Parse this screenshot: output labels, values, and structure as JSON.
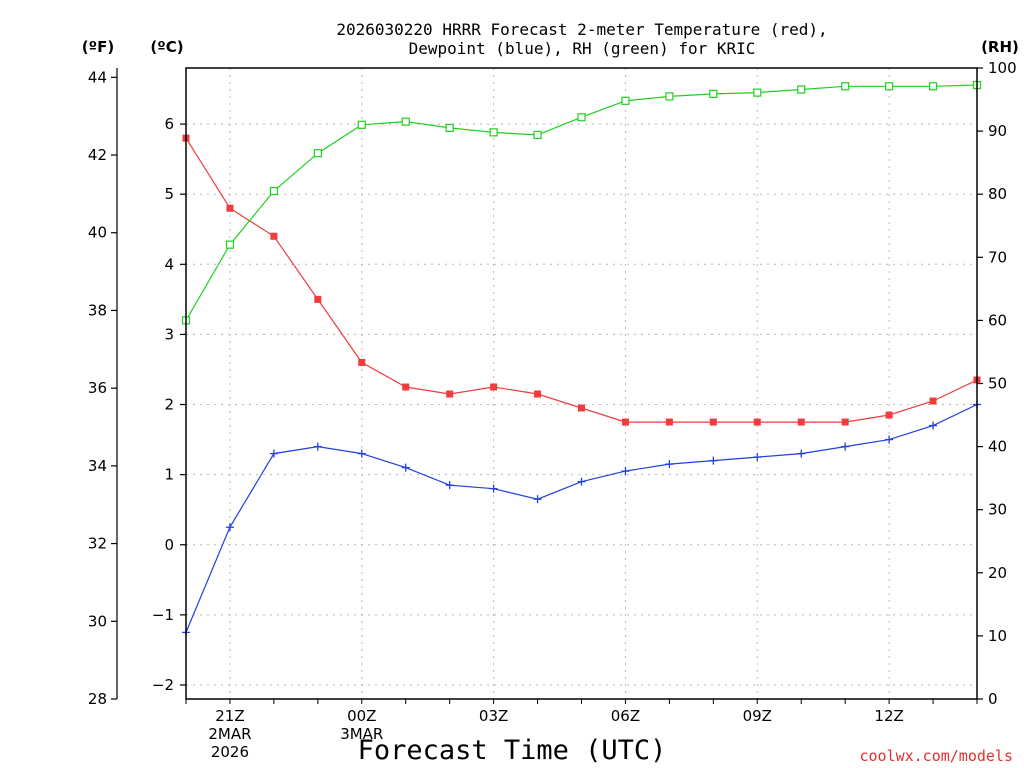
{
  "chart_data": {
    "type": "line",
    "title": "2026030220 HRRR Forecast 2-meter Temperature (red),",
    "subtitle": "Dewpoint (blue), RH (green) for KRIC",
    "xlabel": "Forecast Time (UTC)",
    "units": {
      "fahrenheit": "(ºF)",
      "celsius": "(ºC)",
      "rh": "(RH)"
    },
    "x": [
      "20Z",
      "21Z",
      "22Z",
      "23Z",
      "00Z",
      "01Z",
      "02Z",
      "03Z",
      "04Z",
      "05Z",
      "06Z",
      "07Z",
      "08Z",
      "09Z",
      "10Z",
      "11Z",
      "12Z",
      "13Z",
      "14Z"
    ],
    "x_tick_labels": [
      {
        "at": "21Z",
        "lines": [
          "21Z",
          "2MAR",
          "2026"
        ]
      },
      {
        "at": "00Z",
        "lines": [
          "00Z",
          "3MAR"
        ]
      },
      {
        "at": "03Z",
        "lines": [
          "03Z"
        ]
      },
      {
        "at": "06Z",
        "lines": [
          "06Z"
        ]
      },
      {
        "at": "09Z",
        "lines": [
          "09Z"
        ]
      },
      {
        "at": "12Z",
        "lines": [
          "12Z"
        ]
      }
    ],
    "axes": {
      "celsius": {
        "ylim": [
          -2.2,
          6.8
        ],
        "ticks": [
          -2,
          -1,
          0,
          1,
          2,
          3,
          4,
          5,
          6
        ]
      },
      "fahrenheit": {
        "ylim": [
          28,
          44.24
        ],
        "ticks": [
          28,
          30,
          32,
          34,
          36,
          38,
          40,
          42,
          44
        ]
      },
      "rh": {
        "ylim": [
          0,
          100
        ],
        "ticks": [
          0,
          10,
          20,
          30,
          40,
          50,
          60,
          70,
          80,
          90,
          100
        ]
      }
    },
    "grid": true,
    "series": [
      {
        "name": "Temperature",
        "axis": "celsius",
        "color": "#f03c3c",
        "marker": "filled-square",
        "values": [
          5.8,
          4.8,
          4.4,
          3.5,
          2.6,
          2.25,
          2.15,
          2.25,
          2.15,
          1.95,
          1.75,
          1.75,
          1.75,
          1.75,
          1.75,
          1.75,
          1.85,
          2.05,
          2.35
        ]
      },
      {
        "name": "Dewpoint",
        "axis": "celsius",
        "color": "#2040e0",
        "marker": "plus",
        "values": [
          -1.25,
          0.25,
          1.3,
          1.4,
          1.3,
          1.1,
          0.85,
          0.8,
          0.65,
          0.9,
          1.05,
          1.15,
          1.2,
          1.25,
          1.3,
          1.4,
          1.5,
          1.7,
          2.0
        ]
      },
      {
        "name": "RH",
        "axis": "rh",
        "color": "#20d020",
        "marker": "open-square",
        "values": [
          60,
          72,
          80.5,
          86.5,
          91,
          91.5,
          90.5,
          89.8,
          89.4,
          92.2,
          94.8,
          95.5,
          95.9,
          96.1,
          96.6,
          97.1,
          97.1,
          97.1,
          97.3
        ]
      }
    ]
  },
  "credit": "coolwx.com/models"
}
